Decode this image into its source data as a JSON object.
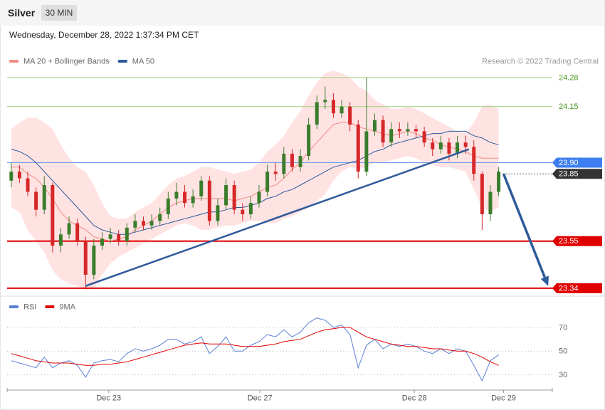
{
  "header": {
    "title": "Silver",
    "interval": "30 MIN",
    "timestamp": "Wednesday, December 28, 2022 1:37:34 PM CET"
  },
  "chart_data": [
    {
      "type": "candlestick",
      "source": "Research © 2022 Trading Central",
      "xlim": [
        -0.5,
        65.5
      ],
      "ylim": [
        23.308,
        24.324
      ],
      "up_color": "#3a7d2c",
      "down_color": "#d62728",
      "open": [
        23.82,
        23.86,
        23.83,
        23.77,
        23.69,
        23.8,
        23.53,
        23.58,
        23.63,
        23.55,
        23.4,
        23.53,
        23.56,
        23.58,
        23.55,
        23.61,
        23.64,
        23.62,
        23.64,
        23.67,
        23.74,
        23.77,
        23.72,
        23.75,
        23.82,
        23.64,
        23.71,
        23.8,
        23.69,
        23.67,
        23.72,
        23.77,
        23.86,
        23.85,
        23.94,
        23.88,
        23.93,
        24.07,
        24.17,
        24.18,
        24.12,
        24.15,
        24.07,
        23.86,
        24.04,
        24.09,
        23.99,
        24.05,
        24.04,
        24.05,
        24.04,
        23.99,
        23.96,
        23.99,
        23.94,
        23.99,
        23.97,
        23.85,
        23.67,
        23.77
      ],
      "high": [
        23.9,
        23.89,
        23.86,
        23.79,
        23.84,
        23.81,
        23.61,
        23.66,
        23.65,
        23.57,
        23.56,
        23.59,
        23.61,
        23.6,
        23.63,
        23.67,
        23.66,
        23.67,
        23.7,
        23.77,
        23.81,
        23.8,
        23.78,
        23.84,
        23.84,
        23.74,
        23.83,
        23.82,
        23.72,
        23.75,
        23.8,
        23.89,
        23.9,
        23.97,
        23.96,
        23.96,
        24.1,
        24.2,
        24.24,
        24.21,
        24.18,
        24.17,
        24.09,
        24.28,
        24.12,
        24.11,
        24.08,
        24.08,
        24.08,
        24.07,
        24.06,
        24.01,
        24.02,
        24.01,
        24.02,
        24.02,
        24.0,
        23.86,
        23.8,
        23.88
      ],
      "low": [
        23.79,
        23.81,
        23.75,
        23.66,
        23.67,
        23.5,
        23.5,
        23.56,
        23.53,
        23.34,
        23.38,
        23.51,
        23.54,
        23.53,
        23.53,
        23.59,
        23.6,
        23.6,
        23.62,
        23.65,
        23.71,
        23.7,
        23.7,
        23.73,
        23.62,
        23.62,
        23.69,
        23.67,
        23.64,
        23.65,
        23.7,
        23.75,
        23.82,
        23.83,
        23.86,
        23.86,
        23.91,
        24.05,
        24.14,
        24.1,
        24.1,
        24.04,
        23.83,
        23.84,
        24.02,
        23.97,
        23.97,
        24.01,
        24.02,
        24.01,
        23.97,
        23.93,
        23.94,
        23.91,
        23.92,
        23.94,
        23.82,
        23.6,
        23.64,
        23.75
      ],
      "close": [
        23.86,
        23.83,
        23.77,
        23.69,
        23.8,
        23.53,
        23.58,
        23.63,
        23.55,
        23.4,
        23.53,
        23.56,
        23.58,
        23.55,
        23.61,
        23.64,
        23.62,
        23.64,
        23.67,
        23.74,
        23.77,
        23.72,
        23.75,
        23.82,
        23.64,
        23.71,
        23.8,
        23.69,
        23.67,
        23.72,
        23.77,
        23.86,
        23.85,
        23.94,
        23.88,
        23.93,
        24.07,
        24.17,
        24.18,
        24.12,
        24.15,
        24.07,
        23.86,
        24.04,
        24.09,
        23.99,
        24.05,
        24.04,
        24.05,
        24.04,
        23.99,
        23.96,
        23.99,
        23.94,
        23.99,
        23.97,
        23.85,
        23.67,
        23.77,
        23.86
      ],
      "series": [
        {
          "name": "MA 20 + Bollinger Bands",
          "color": "#f28b82",
          "band_color": "#ffd9d9",
          "values": [
            23.88,
            23.88,
            23.85,
            23.83,
            23.79,
            23.74,
            23.68,
            23.64,
            23.62,
            23.6,
            23.57,
            23.56,
            23.55,
            23.56,
            23.57,
            23.6,
            23.62,
            23.64,
            23.67,
            23.7,
            23.72,
            23.73,
            23.74,
            23.74,
            23.74,
            23.74,
            23.74,
            23.73,
            23.74,
            23.75,
            23.77,
            23.79,
            23.8,
            23.83,
            23.87,
            23.9,
            23.95,
            23.99,
            24.03,
            24.07,
            24.08,
            24.08,
            24.06,
            24.05,
            24.04,
            24.03,
            24.02,
            24.03,
            24.04,
            24.03,
            24.01,
            24.0,
            23.98,
            23.97,
            23.96,
            23.95,
            23.93,
            23.92,
            23.92,
            23.92
          ],
          "upper": [
            24.05,
            24.08,
            24.1,
            24.1,
            24.08,
            24.05,
            23.98,
            23.92,
            23.88,
            23.86,
            23.8,
            23.72,
            23.66,
            23.65,
            23.65,
            23.68,
            23.7,
            23.72,
            23.76,
            23.8,
            23.83,
            23.84,
            23.86,
            23.88,
            23.88,
            23.87,
            23.86,
            23.85,
            23.86,
            23.87,
            23.9,
            23.95,
            23.98,
            24.02,
            24.08,
            24.13,
            24.2,
            24.26,
            24.3,
            24.31,
            24.3,
            24.28,
            24.24,
            24.22,
            24.18,
            24.16,
            24.14,
            24.14,
            24.15,
            24.14,
            24.12,
            24.1,
            24.08,
            24.06,
            24.04,
            24.03,
            24.08,
            24.15,
            24.16,
            24.14
          ],
          "lower": [
            23.7,
            23.68,
            23.6,
            23.55,
            23.5,
            23.42,
            23.38,
            23.36,
            23.35,
            23.33,
            23.34,
            23.4,
            23.45,
            23.48,
            23.5,
            23.52,
            23.54,
            23.56,
            23.58,
            23.6,
            23.62,
            23.63,
            23.62,
            23.6,
            23.6,
            23.61,
            23.62,
            23.62,
            23.63,
            23.64,
            23.64,
            23.63,
            23.63,
            23.65,
            23.66,
            23.68,
            23.7,
            23.73,
            23.76,
            23.82,
            23.86,
            23.88,
            23.87,
            23.88,
            23.9,
            23.9,
            23.91,
            23.92,
            23.93,
            23.92,
            23.9,
            23.89,
            23.88,
            23.88,
            23.87,
            23.86,
            23.78,
            23.7,
            23.68,
            23.7
          ]
        },
        {
          "name": "MA 50",
          "color": "#2e5a9a",
          "values": [
            23.96,
            23.95,
            23.93,
            23.9,
            23.86,
            23.82,
            23.78,
            23.74,
            23.7,
            23.66,
            23.62,
            23.6,
            23.59,
            23.58,
            23.58,
            23.59,
            23.6,
            23.61,
            23.62,
            23.63,
            23.64,
            23.65,
            23.66,
            23.67,
            23.68,
            23.68,
            23.69,
            23.7,
            23.7,
            23.71,
            23.72,
            23.74,
            23.75,
            23.77,
            23.78,
            23.8,
            23.82,
            23.84,
            23.86,
            23.88,
            23.89,
            23.9,
            23.91,
            23.93,
            23.95,
            23.96,
            23.98,
            23.99,
            24.0,
            24.01,
            24.02,
            24.03,
            24.03,
            24.04,
            24.04,
            24.04,
            24.02,
            24.01,
            23.99,
            23.98
          ]
        }
      ],
      "levels": [
        {
          "value": 24.28,
          "label": "24.28",
          "color": "#9fd07e",
          "text_color": "#4d9a1f",
          "style": "thin"
        },
        {
          "value": 24.15,
          "label": "24.15",
          "color": "#9fd07e",
          "text_color": "#4d9a1f",
          "style": "thin"
        },
        {
          "value": 23.9,
          "label": "23.90",
          "color": "#6d9cf2",
          "badge": "#3d7ff0",
          "style": "thin"
        },
        {
          "value": 23.85,
          "label": "23.85",
          "color": "#333333",
          "badge": "#333333",
          "style": "dotted"
        },
        {
          "value": 23.55,
          "label": "23.55",
          "color": "#e00000",
          "badge": "#e00000",
          "style": "thick"
        },
        {
          "value": 23.34,
          "label": "23.34",
          "color": "#e00000",
          "badge": "#e00000",
          "style": "thick"
        }
      ],
      "trendline": {
        "x": [
          9,
          55.4
        ],
        "y": [
          23.35,
          23.96
        ],
        "color": "#2e5a9a"
      },
      "arrow": {
        "x": [
          59.6,
          65
        ],
        "y": [
          23.85,
          23.35
        ],
        "color": "#2e5a9a"
      }
    },
    {
      "type": "line",
      "xlim": [
        -0.5,
        65.5
      ],
      "ylim": [
        19,
        94
      ],
      "yticks": [
        30,
        50,
        70
      ],
      "grid": true,
      "xticks": [
        {
          "value": 11.8,
          "label": "Dec 23"
        },
        {
          "value": 30.1,
          "label": "Dec 27"
        },
        {
          "value": 48.8,
          "label": "Dec 28"
        },
        {
          "value": 59.6,
          "label": "Dec 29"
        }
      ],
      "series": [
        {
          "name": "RSI",
          "color": "#5b7fd6",
          "values": [
            42,
            40,
            38,
            36,
            45,
            36,
            40,
            42,
            38,
            28,
            40,
            42,
            43,
            41,
            48,
            52,
            50,
            52,
            55,
            60,
            60,
            56,
            58,
            62,
            48,
            54,
            62,
            50,
            50,
            55,
            58,
            64,
            62,
            68,
            62,
            66,
            74,
            78,
            76,
            70,
            72,
            64,
            36,
            55,
            60,
            52,
            56,
            54,
            56,
            54,
            50,
            48,
            52,
            48,
            52,
            50,
            38,
            25,
            42,
            47
          ]
        },
        {
          "name": "9MA",
          "color": "#e00000",
          "values": [
            48,
            46,
            44,
            42,
            41,
            40,
            40,
            40,
            39,
            38,
            38,
            39,
            39,
            40,
            41,
            43,
            45,
            47,
            49,
            51,
            53,
            55,
            56,
            57,
            56,
            56,
            56,
            55,
            54,
            54,
            54,
            55,
            56,
            58,
            59,
            60,
            63,
            66,
            68,
            69,
            70,
            70,
            66,
            62,
            60,
            58,
            56,
            55,
            54,
            54,
            53,
            52,
            52,
            51,
            50,
            50,
            48,
            45,
            41,
            38
          ]
        }
      ]
    }
  ]
}
